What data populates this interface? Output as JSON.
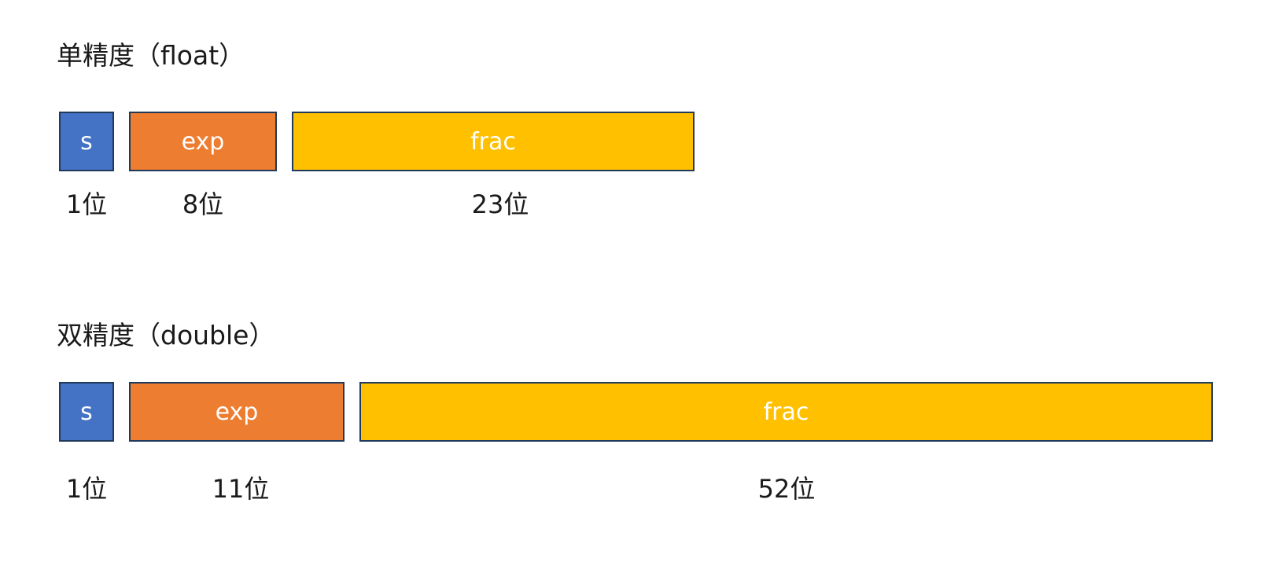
{
  "float": {
    "title": "单精度（float）",
    "fields": {
      "sign": {
        "label": "s",
        "bits": "1位",
        "width": 1
      },
      "exp": {
        "label": "exp",
        "bits": "8位",
        "width": 8
      },
      "frac": {
        "label": "frac",
        "bits": "23位",
        "width": 23
      }
    }
  },
  "double": {
    "title": "双精度（double）",
    "fields": {
      "sign": {
        "label": "s",
        "bits": "1位",
        "width": 1
      },
      "exp": {
        "label": "exp",
        "bits": "11位",
        "width": 11
      },
      "frac": {
        "label": "frac",
        "bits": "52位",
        "width": 52
      }
    }
  },
  "colors": {
    "sign": "#4472c4",
    "exp": "#ed7d31",
    "frac": "#ffc000",
    "border": "#1f3a5a"
  }
}
